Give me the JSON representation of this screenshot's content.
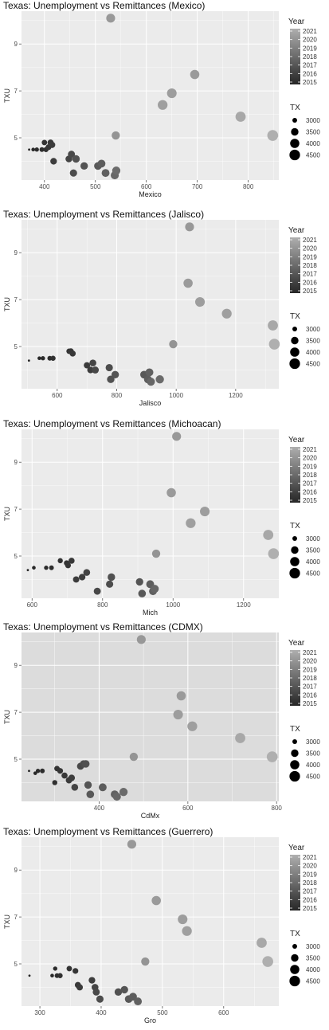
{
  "chart_data": [
    {
      "type": "scatter",
      "title": "Texas: Unemployment vs Remittances (Mexico)",
      "xlabel": "Mexico",
      "ylabel": "TXU",
      "xlim": [
        355,
        860
      ],
      "ylim": [
        3.2,
        10.4
      ],
      "x_ticks": [
        400,
        500,
        600,
        700,
        800
      ],
      "y_ticks": [
        5,
        7,
        9
      ],
      "grid": true,
      "panel_color": "#ebebeb",
      "color_legend": {
        "title": "Year",
        "labels": [
          "2021",
          "2020",
          "2019",
          "2018",
          "2017",
          "2016",
          "2015"
        ]
      },
      "size_legend": {
        "title": "TX",
        "labels": [
          "3000",
          "3500",
          "4000",
          "4500"
        ]
      },
      "points": [
        {
          "x": 370,
          "y": 4.5,
          "year": 2015.0,
          "tx": 2850
        },
        {
          "x": 378,
          "y": 4.5,
          "year": 2015.1,
          "tx": 2900
        },
        {
          "x": 385,
          "y": 4.5,
          "year": 2015.2,
          "tx": 2950
        },
        {
          "x": 395,
          "y": 4.5,
          "year": 2015.3,
          "tx": 3000
        },
        {
          "x": 400,
          "y": 4.8,
          "year": 2015.6,
          "tx": 3100
        },
        {
          "x": 403,
          "y": 4.5,
          "year": 2015.5,
          "tx": 3050
        },
        {
          "x": 408,
          "y": 4.6,
          "year": 2015.7,
          "tx": 3150
        },
        {
          "x": 412,
          "y": 4.8,
          "year": 2015.8,
          "tx": 3200
        },
        {
          "x": 415,
          "y": 4.7,
          "year": 2015.9,
          "tx": 3250
        },
        {
          "x": 418,
          "y": 4.0,
          "year": 2016.0,
          "tx": 3300
        },
        {
          "x": 448,
          "y": 4.1,
          "year": 2016.3,
          "tx": 3350
        },
        {
          "x": 453,
          "y": 4.3,
          "year": 2016.5,
          "tx": 3400
        },
        {
          "x": 457,
          "y": 3.5,
          "year": 2016.7,
          "tx": 3450
        },
        {
          "x": 462,
          "y": 4.1,
          "year": 2016.9,
          "tx": 3500
        },
        {
          "x": 478,
          "y": 3.8,
          "year": 2017.0,
          "tx": 3500
        },
        {
          "x": 505,
          "y": 3.8,
          "year": 2017.2,
          "tx": 3550
        },
        {
          "x": 512,
          "y": 3.9,
          "year": 2017.4,
          "tx": 3600
        },
        {
          "x": 520,
          "y": 3.5,
          "year": 2017.6,
          "tx": 3600
        },
        {
          "x": 538,
          "y": 3.4,
          "year": 2017.8,
          "tx": 3650
        },
        {
          "x": 541,
          "y": 3.6,
          "year": 2018.0,
          "tx": 3700
        },
        {
          "x": 540,
          "y": 5.1,
          "year": 2019.8,
          "tx": 3700
        },
        {
          "x": 530,
          "y": 10.1,
          "year": 2020.0,
          "tx": 3900
        },
        {
          "x": 632,
          "y": 6.4,
          "year": 2020.3,
          "tx": 4200
        },
        {
          "x": 650,
          "y": 6.9,
          "year": 2020.2,
          "tx": 4150
        },
        {
          "x": 695,
          "y": 7.7,
          "year": 2020.1,
          "tx": 4000
        },
        {
          "x": 785,
          "y": 5.9,
          "year": 2020.7,
          "tx": 4350
        },
        {
          "x": 848,
          "y": 5.1,
          "year": 2021.0,
          "tx": 4600
        }
      ]
    },
    {
      "type": "scatter",
      "title": "Texas: Unemployment vs Remittances (Jalisco)",
      "xlabel": "Jalisco",
      "ylabel": "TXU",
      "xlim": [
        480,
        1345
      ],
      "ylim": [
        3.2,
        10.4
      ],
      "x_ticks": [
        600,
        800,
        1000,
        1200
      ],
      "y_ticks": [
        5,
        7,
        9
      ],
      "grid": true,
      "panel_color": "#ebebeb",
      "color_legend": {
        "title": "Year",
        "labels": [
          "2021",
          "2020",
          "2019",
          "2018",
          "2017",
          "2016",
          "2015"
        ]
      },
      "size_legend": {
        "title": "TX",
        "labels": [
          "3000",
          "3500",
          "4000",
          "4500"
        ]
      },
      "points": [
        {
          "x": 505,
          "y": 4.4,
          "year": 2015.0,
          "tx": 2850
        },
        {
          "x": 540,
          "y": 4.5,
          "year": 2015.1,
          "tx": 2900
        },
        {
          "x": 552,
          "y": 4.5,
          "year": 2015.2,
          "tx": 2950
        },
        {
          "x": 575,
          "y": 4.5,
          "year": 2015.3,
          "tx": 3000
        },
        {
          "x": 586,
          "y": 4.5,
          "year": 2015.5,
          "tx": 3050
        },
        {
          "x": 640,
          "y": 4.8,
          "year": 2015.6,
          "tx": 3100
        },
        {
          "x": 646,
          "y": 4.8,
          "year": 2015.7,
          "tx": 3150
        },
        {
          "x": 652,
          "y": 4.7,
          "year": 2015.8,
          "tx": 3200
        },
        {
          "x": 700,
          "y": 4.2,
          "year": 2015.9,
          "tx": 3250
        },
        {
          "x": 712,
          "y": 4.0,
          "year": 2016.0,
          "tx": 3300
        },
        {
          "x": 720,
          "y": 4.3,
          "year": 2016.3,
          "tx": 3350
        },
        {
          "x": 728,
          "y": 4.0,
          "year": 2016.5,
          "tx": 3400
        },
        {
          "x": 775,
          "y": 4.1,
          "year": 2016.7,
          "tx": 3450
        },
        {
          "x": 780,
          "y": 3.6,
          "year": 2016.9,
          "tx": 3500
        },
        {
          "x": 795,
          "y": 3.8,
          "year": 2017.0,
          "tx": 3500
        },
        {
          "x": 892,
          "y": 3.8,
          "year": 2017.2,
          "tx": 3550
        },
        {
          "x": 905,
          "y": 3.6,
          "year": 2017.4,
          "tx": 3600
        },
        {
          "x": 910,
          "y": 3.9,
          "year": 2017.6,
          "tx": 3600
        },
        {
          "x": 915,
          "y": 3.5,
          "year": 2017.8,
          "tx": 3650
        },
        {
          "x": 945,
          "y": 3.6,
          "year": 2018.0,
          "tx": 3700
        },
        {
          "x": 990,
          "y": 5.1,
          "year": 2019.8,
          "tx": 3700
        },
        {
          "x": 1045,
          "y": 10.1,
          "year": 2020.0,
          "tx": 3900
        },
        {
          "x": 1040,
          "y": 7.7,
          "year": 2020.1,
          "tx": 4000
        },
        {
          "x": 1080,
          "y": 6.9,
          "year": 2020.2,
          "tx": 4150
        },
        {
          "x": 1170,
          "y": 6.4,
          "year": 2020.3,
          "tx": 4200
        },
        {
          "x": 1325,
          "y": 5.9,
          "year": 2020.7,
          "tx": 4350
        },
        {
          "x": 1330,
          "y": 5.1,
          "year": 2021.0,
          "tx": 4600
        }
      ]
    },
    {
      "type": "scatter",
      "title": "Texas: Unemployment vs Remittances (Michoacan)",
      "xlabel": "Mich",
      "ylabel": "TXU",
      "xlim": [
        570,
        1300
      ],
      "ylim": [
        3.2,
        10.4
      ],
      "x_ticks": [
        600,
        800,
        1000,
        1200
      ],
      "y_ticks": [
        5,
        7,
        9
      ],
      "grid": true,
      "panel_color": "#ebebeb",
      "color_legend": {
        "title": "Year",
        "labels": [
          "2021",
          "2020",
          "2019",
          "2018",
          "2017",
          "2016",
          "2015"
        ]
      },
      "size_legend": {
        "title": "TX",
        "labels": [
          "3000",
          "3500",
          "4000",
          "4500"
        ]
      },
      "points": [
        {
          "x": 588,
          "y": 4.4,
          "year": 2015.0,
          "tx": 2850
        },
        {
          "x": 605,
          "y": 4.5,
          "year": 2015.1,
          "tx": 2900
        },
        {
          "x": 640,
          "y": 4.5,
          "year": 2015.2,
          "tx": 2950
        },
        {
          "x": 655,
          "y": 4.5,
          "year": 2015.3,
          "tx": 3000
        },
        {
          "x": 680,
          "y": 4.8,
          "year": 2015.5,
          "tx": 3050
        },
        {
          "x": 698,
          "y": 4.7,
          "year": 2015.6,
          "tx": 3100
        },
        {
          "x": 702,
          "y": 4.6,
          "year": 2015.7,
          "tx": 3150
        },
        {
          "x": 712,
          "y": 4.8,
          "year": 2015.8,
          "tx": 3200
        },
        {
          "x": 725,
          "y": 4.0,
          "year": 2015.9,
          "tx": 3250
        },
        {
          "x": 742,
          "y": 4.1,
          "year": 2016.0,
          "tx": 3300
        },
        {
          "x": 755,
          "y": 4.3,
          "year": 2016.3,
          "tx": 3350
        },
        {
          "x": 785,
          "y": 3.5,
          "year": 2016.5,
          "tx": 3400
        },
        {
          "x": 820,
          "y": 3.8,
          "year": 2016.7,
          "tx": 3450
        },
        {
          "x": 825,
          "y": 4.1,
          "year": 2016.9,
          "tx": 3500
        },
        {
          "x": 905,
          "y": 3.9,
          "year": 2017.0,
          "tx": 3500
        },
        {
          "x": 912,
          "y": 3.4,
          "year": 2017.2,
          "tx": 3550
        },
        {
          "x": 935,
          "y": 3.8,
          "year": 2017.4,
          "tx": 3600
        },
        {
          "x": 943,
          "y": 3.5,
          "year": 2017.6,
          "tx": 3600
        },
        {
          "x": 948,
          "y": 3.6,
          "year": 2017.8,
          "tx": 3650
        },
        {
          "x": 952,
          "y": 5.1,
          "year": 2019.8,
          "tx": 3700
        },
        {
          "x": 1010,
          "y": 10.1,
          "year": 2020.0,
          "tx": 3900
        },
        {
          "x": 995,
          "y": 7.7,
          "year": 2020.1,
          "tx": 4000
        },
        {
          "x": 1090,
          "y": 6.9,
          "year": 2020.2,
          "tx": 4150
        },
        {
          "x": 1050,
          "y": 6.4,
          "year": 2020.3,
          "tx": 4200
        },
        {
          "x": 1270,
          "y": 5.9,
          "year": 2020.7,
          "tx": 4350
        },
        {
          "x": 1285,
          "y": 5.1,
          "year": 2021.0,
          "tx": 4600
        }
      ]
    },
    {
      "type": "scatter",
      "title": "Texas: Unemployment vs Remittances (CDMX)",
      "xlabel": "CdMx",
      "ylabel": "TXU",
      "xlim": [
        225,
        805
      ],
      "ylim": [
        3.2,
        10.4
      ],
      "x_ticks": [
        400,
        600,
        800
      ],
      "y_ticks": [
        5,
        7,
        9
      ],
      "grid": true,
      "panel_color": "#dcdcdc",
      "color_legend": {
        "title": "Year",
        "labels": [
          "2021",
          "2020",
          "2019",
          "2018",
          "2017",
          "2016",
          "2015"
        ]
      },
      "size_legend": {
        "title": "TX",
        "labels": [
          "3000",
          "3500",
          "4000",
          "4500"
        ]
      },
      "points": [
        {
          "x": 242,
          "y": 4.5,
          "year": 2015.0,
          "tx": 2850
        },
        {
          "x": 256,
          "y": 4.4,
          "year": 2015.1,
          "tx": 2900
        },
        {
          "x": 262,
          "y": 4.5,
          "year": 2015.2,
          "tx": 2950
        },
        {
          "x": 272,
          "y": 4.5,
          "year": 2015.3,
          "tx": 3000
        },
        {
          "x": 300,
          "y": 4.0,
          "year": 2015.5,
          "tx": 3050
        },
        {
          "x": 305,
          "y": 4.6,
          "year": 2015.6,
          "tx": 3100
        },
        {
          "x": 312,
          "y": 4.5,
          "year": 2015.7,
          "tx": 3150
        },
        {
          "x": 322,
          "y": 4.3,
          "year": 2015.8,
          "tx": 3200
        },
        {
          "x": 332,
          "y": 4.1,
          "year": 2015.9,
          "tx": 3250
        },
        {
          "x": 338,
          "y": 4.2,
          "year": 2016.0,
          "tx": 3300
        },
        {
          "x": 345,
          "y": 3.8,
          "year": 2016.3,
          "tx": 3350
        },
        {
          "x": 358,
          "y": 4.7,
          "year": 2016.5,
          "tx": 3400
        },
        {
          "x": 365,
          "y": 4.8,
          "year": 2016.7,
          "tx": 3450
        },
        {
          "x": 370,
          "y": 4.8,
          "year": 2016.9,
          "tx": 3500
        },
        {
          "x": 375,
          "y": 3.9,
          "year": 2017.0,
          "tx": 3500
        },
        {
          "x": 380,
          "y": 3.5,
          "year": 2017.2,
          "tx": 3550
        },
        {
          "x": 408,
          "y": 3.8,
          "year": 2017.4,
          "tx": 3600
        },
        {
          "x": 435,
          "y": 3.5,
          "year": 2017.6,
          "tx": 3600
        },
        {
          "x": 440,
          "y": 3.4,
          "year": 2017.8,
          "tx": 3650
        },
        {
          "x": 455,
          "y": 3.6,
          "year": 2018.0,
          "tx": 3700
        },
        {
          "x": 478,
          "y": 5.1,
          "year": 2019.8,
          "tx": 3700
        },
        {
          "x": 495,
          "y": 10.1,
          "year": 2020.0,
          "tx": 3900
        },
        {
          "x": 585,
          "y": 7.7,
          "year": 2020.1,
          "tx": 4000
        },
        {
          "x": 578,
          "y": 6.9,
          "year": 2020.2,
          "tx": 4150
        },
        {
          "x": 610,
          "y": 6.4,
          "year": 2020.3,
          "tx": 4200
        },
        {
          "x": 718,
          "y": 5.9,
          "year": 2020.7,
          "tx": 4350
        },
        {
          "x": 790,
          "y": 5.1,
          "year": 2021.0,
          "tx": 4600
        }
      ]
    },
    {
      "type": "scatter",
      "title": "Texas: Unemployment vs Remittances (Guerrero)",
      "xlabel": "Gro",
      "ylabel": "TXU",
      "xlim": [
        270,
        690
      ],
      "ylim": [
        3.2,
        10.4
      ],
      "x_ticks": [
        300,
        400,
        500,
        600
      ],
      "y_ticks": [
        5,
        7,
        9
      ],
      "grid": true,
      "panel_color": "#ebebeb",
      "color_legend": {
        "title": "Year",
        "labels": [
          "2021",
          "2020",
          "2019",
          "2018",
          "2017",
          "2016",
          "2015"
        ]
      },
      "size_legend": {
        "title": "TX",
        "labels": [
          "3000",
          "3500",
          "4000",
          "4500"
        ]
      },
      "points": [
        {
          "x": 283,
          "y": 4.5,
          "year": 2015.0,
          "tx": 2850
        },
        {
          "x": 320,
          "y": 4.5,
          "year": 2015.1,
          "tx": 2900
        },
        {
          "x": 325,
          "y": 4.8,
          "year": 2015.2,
          "tx": 2950
        },
        {
          "x": 328,
          "y": 4.5,
          "year": 2015.3,
          "tx": 3000
        },
        {
          "x": 333,
          "y": 4.5,
          "year": 2015.5,
          "tx": 3050
        },
        {
          "x": 348,
          "y": 4.8,
          "year": 2015.6,
          "tx": 3100
        },
        {
          "x": 358,
          "y": 4.7,
          "year": 2015.7,
          "tx": 3150
        },
        {
          "x": 362,
          "y": 4.1,
          "year": 2015.8,
          "tx": 3200
        },
        {
          "x": 365,
          "y": 4.0,
          "year": 2015.9,
          "tx": 3250
        },
        {
          "x": 385,
          "y": 4.3,
          "year": 2016.0,
          "tx": 3300
        },
        {
          "x": 390,
          "y": 4.0,
          "year": 2016.3,
          "tx": 3350
        },
        {
          "x": 392,
          "y": 3.8,
          "year": 2016.5,
          "tx": 3400
        },
        {
          "x": 398,
          "y": 3.5,
          "year": 2016.7,
          "tx": 3450
        },
        {
          "x": 428,
          "y": 3.8,
          "year": 2016.9,
          "tx": 3500
        },
        {
          "x": 438,
          "y": 3.9,
          "year": 2017.0,
          "tx": 3500
        },
        {
          "x": 445,
          "y": 3.5,
          "year": 2017.2,
          "tx": 3550
        },
        {
          "x": 452,
          "y": 3.6,
          "year": 2017.4,
          "tx": 3600
        },
        {
          "x": 460,
          "y": 3.4,
          "year": 2017.6,
          "tx": 3600
        },
        {
          "x": 472,
          "y": 5.1,
          "year": 2019.8,
          "tx": 3700
        },
        {
          "x": 450,
          "y": 10.1,
          "year": 2020.0,
          "tx": 3900
        },
        {
          "x": 490,
          "y": 7.7,
          "year": 2020.1,
          "tx": 4000
        },
        {
          "x": 533,
          "y": 6.9,
          "year": 2020.2,
          "tx": 4150
        },
        {
          "x": 540,
          "y": 6.4,
          "year": 2020.3,
          "tx": 4200
        },
        {
          "x": 662,
          "y": 5.9,
          "year": 2020.7,
          "tx": 4350
        },
        {
          "x": 672,
          "y": 5.1,
          "year": 2021.0,
          "tx": 4600
        }
      ]
    }
  ]
}
